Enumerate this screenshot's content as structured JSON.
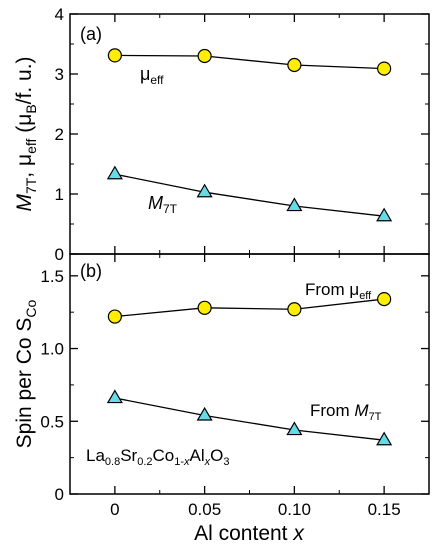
{
  "chart_data": [
    {
      "type": "line",
      "panel_label": "(a)",
      "x": [
        0,
        0.05,
        0.1,
        0.15
      ],
      "xlim": [
        -0.025,
        0.175
      ],
      "ylim": [
        0,
        4
      ],
      "yticks": [
        "0",
        "1",
        "2",
        "3",
        "4"
      ],
      "ylabel": {
        "m": "M",
        "m_sub": "7T",
        "sep": ", ",
        "mu": "μ",
        "mu_sub": "eff",
        "open": " (μ",
        "b_sub": "B",
        "close": "/f. u.)"
      },
      "series": [
        {
          "name": "μeff",
          "marker": "circle",
          "color": "#ffee00",
          "values": [
            3.31,
            3.3,
            3.15,
            3.09
          ]
        },
        {
          "name": "M7T",
          "marker": "triangle",
          "color": "#66dbe6",
          "values": [
            1.33,
            1.03,
            0.8,
            0.63
          ]
        }
      ],
      "annotations": {
        "mu": "μ",
        "mu_sub": "eff",
        "m": "M",
        "m_sub": "7T"
      }
    },
    {
      "type": "line",
      "panel_label": "(b)",
      "x": [
        0,
        0.05,
        0.1,
        0.15
      ],
      "xlim": [
        -0.025,
        0.175
      ],
      "ylim": [
        0,
        1.65
      ],
      "yticks": [
        "0",
        "0.5",
        "1.0",
        "1.5"
      ],
      "xticks": [
        "0",
        "0.05",
        "0.10",
        "0.15"
      ],
      "xlabel": {
        "text": "Al content ",
        "italic": "x"
      },
      "ylabel": {
        "text": "Spin per Co  S",
        "sub": "Co"
      },
      "series": [
        {
          "name": "From μeff",
          "marker": "circle",
          "color": "#ffee00",
          "values": [
            1.22,
            1.28,
            1.27,
            1.34
          ]
        },
        {
          "name": "From M7T",
          "marker": "triangle",
          "color": "#66dbe6",
          "values": [
            0.66,
            0.54,
            0.44,
            0.37
          ]
        }
      ],
      "annotations": {
        "from_mu": "From μ",
        "from_mu_sub": "eff",
        "from_m": "From ",
        "from_m_italic": "M",
        "from_m_sub": "7T",
        "compound": {
          "La": "La",
          "s1": "0.8",
          "Sr": "Sr",
          "s2": "0.2",
          "Co": "Co",
          "s3": "1-",
          "s3x": "x",
          "Al": "Al",
          "s4x": "x",
          "O": "O",
          "s5": "3"
        }
      }
    }
  ]
}
